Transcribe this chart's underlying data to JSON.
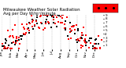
{
  "title": "Milwaukee Weather Solar Radiation",
  "subtitle": "Avg per Day W/m²/minute",
  "ylim": [
    0,
    9
  ],
  "yticks": [
    1,
    2,
    3,
    4,
    5,
    6,
    7,
    8,
    9
  ],
  "xlim_min": 0,
  "xlim_max": 365,
  "background_color": "#ffffff",
  "grid_color": "#999999",
  "point_color_red": "#ff0000",
  "point_color_black": "#000000",
  "legend_box_color": "#ff0000",
  "title_fontsize": 4.0,
  "tick_fontsize": 3.0,
  "num_days": 365,
  "seed": 7
}
